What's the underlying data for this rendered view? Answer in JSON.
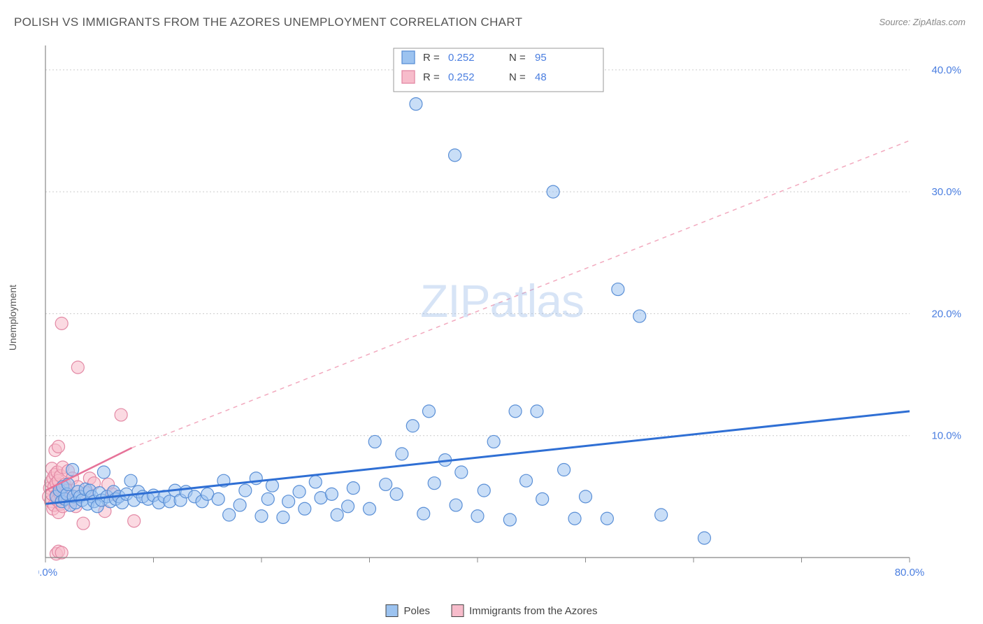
{
  "title": "POLISH VS IMMIGRANTS FROM THE AZORES UNEMPLOYMENT CORRELATION CHART",
  "source_label": "Source: ZipAtlas.com",
  "y_axis_label": "Unemployment",
  "watermark": {
    "part1": "ZIP",
    "part2": "atlas"
  },
  "chart": {
    "type": "scatter",
    "xlim": [
      0,
      80
    ],
    "ylim": [
      0,
      42
    ],
    "x_ticks": [
      0,
      10,
      20,
      30,
      40,
      50,
      60,
      70,
      80
    ],
    "x_tick_labels_shown": {
      "0": "0.0%",
      "80": "80.0%"
    },
    "y_right_ticks": [
      10,
      20,
      30,
      40
    ],
    "y_right_labels": [
      "10.0%",
      "20.0%",
      "30.0%",
      "40.0%"
    ],
    "gridline_y": [
      10,
      20,
      30,
      40
    ],
    "grid_color": "#cccccc",
    "background_color": "#ffffff",
    "axis_color": "#888888",
    "right_label_color": "#4a7ee0",
    "series": {
      "blue": {
        "name": "Poles",
        "marker_color": "#9cc3f0",
        "marker_stroke": "#5a8fd6",
        "marker_radius": 9,
        "R": "0.252",
        "N": "95",
        "trend": {
          "color": "#2f6fd4",
          "width": 3,
          "x1": 0,
          "y1": 4.4,
          "x2": 80,
          "y2": 12.0
        },
        "points": [
          [
            1.0,
            5.0
          ],
          [
            1.3,
            5.5
          ],
          [
            1.5,
            4.6
          ],
          [
            1.6,
            5.8
          ],
          [
            1.8,
            4.8
          ],
          [
            2.0,
            5.2
          ],
          [
            2.1,
            6.0
          ],
          [
            2.3,
            4.3
          ],
          [
            2.5,
            7.2
          ],
          [
            2.6,
            5.0
          ],
          [
            2.8,
            4.5
          ],
          [
            3.0,
            5.4
          ],
          [
            3.2,
            5.0
          ],
          [
            3.4,
            4.7
          ],
          [
            3.7,
            5.6
          ],
          [
            3.9,
            4.4
          ],
          [
            4.1,
            5.5
          ],
          [
            4.3,
            5.0
          ],
          [
            4.5,
            4.6
          ],
          [
            4.8,
            4.2
          ],
          [
            5.0,
            5.3
          ],
          [
            5.2,
            4.7
          ],
          [
            5.4,
            7.0
          ],
          [
            5.7,
            5.0
          ],
          [
            6.0,
            4.6
          ],
          [
            6.3,
            5.4
          ],
          [
            6.5,
            4.8
          ],
          [
            6.8,
            5.0
          ],
          [
            7.1,
            4.5
          ],
          [
            7.5,
            5.2
          ],
          [
            7.9,
            6.3
          ],
          [
            8.2,
            4.7
          ],
          [
            8.6,
            5.4
          ],
          [
            9.0,
            5.0
          ],
          [
            9.5,
            4.8
          ],
          [
            10.0,
            5.1
          ],
          [
            10.5,
            4.5
          ],
          [
            11.0,
            5.0
          ],
          [
            11.5,
            4.6
          ],
          [
            12.0,
            5.5
          ],
          [
            12.5,
            4.7
          ],
          [
            13.0,
            5.4
          ],
          [
            13.8,
            5.0
          ],
          [
            14.5,
            4.6
          ],
          [
            15.0,
            5.2
          ],
          [
            16.0,
            4.8
          ],
          [
            16.5,
            6.3
          ],
          [
            17.0,
            3.5
          ],
          [
            18.0,
            4.3
          ],
          [
            18.5,
            5.5
          ],
          [
            19.5,
            6.5
          ],
          [
            20.0,
            3.4
          ],
          [
            20.6,
            4.8
          ],
          [
            21.0,
            5.9
          ],
          [
            22.0,
            3.3
          ],
          [
            22.5,
            4.6
          ],
          [
            23.5,
            5.4
          ],
          [
            24.0,
            4.0
          ],
          [
            25.0,
            6.2
          ],
          [
            25.5,
            4.9
          ],
          [
            26.5,
            5.2
          ],
          [
            27.0,
            3.5
          ],
          [
            28.0,
            4.2
          ],
          [
            28.5,
            5.7
          ],
          [
            30.0,
            4.0
          ],
          [
            30.5,
            9.5
          ],
          [
            31.5,
            6.0
          ],
          [
            32.5,
            5.2
          ],
          [
            33.0,
            8.5
          ],
          [
            34.0,
            10.8
          ],
          [
            35.0,
            3.6
          ],
          [
            35.5,
            12.0
          ],
          [
            36.0,
            6.1
          ],
          [
            37.0,
            8.0
          ],
          [
            38.0,
            4.3
          ],
          [
            38.5,
            7.0
          ],
          [
            40.0,
            3.4
          ],
          [
            40.6,
            5.5
          ],
          [
            41.5,
            9.5
          ],
          [
            43.0,
            3.1
          ],
          [
            43.5,
            12.0
          ],
          [
            44.5,
            6.3
          ],
          [
            46.0,
            4.8
          ],
          [
            48.0,
            7.2
          ],
          [
            49.0,
            3.2
          ],
          [
            50.0,
            5.0
          ],
          [
            52.0,
            3.2
          ],
          [
            53.0,
            22.0
          ],
          [
            55.0,
            19.8
          ],
          [
            57.0,
            3.5
          ],
          [
            61.0,
            1.6
          ],
          [
            34.3,
            37.2
          ],
          [
            37.9,
            33.0
          ],
          [
            47.0,
            30.0
          ],
          [
            45.5,
            12.0
          ]
        ]
      },
      "pink": {
        "name": "Immigrants from the Azores",
        "marker_color": "#f7bccb",
        "marker_stroke": "#e389a5",
        "marker_radius": 9,
        "R": "0.252",
        "N": "48",
        "trend_solid": {
          "color": "#e67399",
          "width": 2.5,
          "x1": 0,
          "y1": 5.5,
          "x2": 8.0,
          "y2": 9.0
        },
        "trend_dashed": {
          "color": "#f2a9be",
          "width": 1.5,
          "x1": 8.0,
          "y1": 9.0,
          "x2": 80,
          "y2": 34.2
        },
        "points": [
          [
            0.3,
            5.0
          ],
          [
            0.4,
            5.7
          ],
          [
            0.5,
            4.6
          ],
          [
            0.5,
            6.2
          ],
          [
            0.6,
            5.2
          ],
          [
            0.6,
            7.3
          ],
          [
            0.7,
            4.0
          ],
          [
            0.7,
            6.5
          ],
          [
            0.8,
            4.3
          ],
          [
            0.8,
            5.8
          ],
          [
            0.9,
            6.8
          ],
          [
            0.9,
            8.8
          ],
          [
            1.0,
            5.1
          ],
          [
            1.0,
            6.1
          ],
          [
            1.1,
            4.7
          ],
          [
            1.1,
            7.0
          ],
          [
            1.2,
            3.7
          ],
          [
            1.2,
            6.3
          ],
          [
            1.2,
            9.1
          ],
          [
            1.3,
            5.3
          ],
          [
            1.4,
            4.4
          ],
          [
            1.4,
            6.7
          ],
          [
            1.5,
            5.6
          ],
          [
            1.6,
            4.2
          ],
          [
            1.6,
            7.4
          ],
          [
            1.7,
            5.0
          ],
          [
            1.8,
            6.0
          ],
          [
            1.9,
            4.8
          ],
          [
            2.0,
            5.5
          ],
          [
            2.1,
            7.1
          ],
          [
            1.0,
            0.3
          ],
          [
            1.2,
            0.5
          ],
          [
            1.5,
            0.4
          ],
          [
            2.4,
            4.7
          ],
          [
            2.5,
            6.5
          ],
          [
            2.8,
            4.2
          ],
          [
            3.0,
            5.8
          ],
          [
            3.5,
            2.8
          ],
          [
            3.8,
            5.3
          ],
          [
            4.1,
            6.5
          ],
          [
            4.5,
            6.1
          ],
          [
            5.5,
            3.8
          ],
          [
            5.8,
            6.0
          ],
          [
            6.2,
            5.2
          ],
          [
            7.0,
            11.7
          ],
          [
            1.5,
            19.2
          ],
          [
            3.0,
            15.6
          ],
          [
            8.2,
            3.0
          ]
        ]
      }
    }
  },
  "top_legend": {
    "rows": [
      {
        "swatch": "blue",
        "R_label": "R =",
        "R_value": "0.252",
        "N_label": "N =",
        "N_value": "95"
      },
      {
        "swatch": "pink",
        "R_label": "R =",
        "R_value": "0.252",
        "N_label": "N =",
        "N_value": "48"
      }
    ]
  },
  "bottom_legend": {
    "items": [
      {
        "swatch": "blue",
        "label": "Poles"
      },
      {
        "swatch": "pink",
        "label": "Immigrants from the Azores"
      }
    ]
  }
}
